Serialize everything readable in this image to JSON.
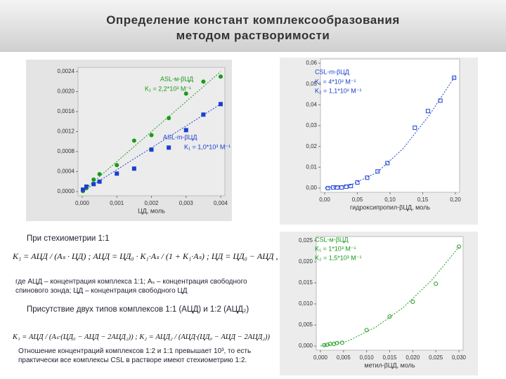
{
  "title": [
    "Определение констант комплексообразования",
    "методом растворимости"
  ],
  "text": {
    "stoich": "При стехиометрии 1:1",
    "formula1": "K₁ = АЦД / (Aₛ · ЦД) ;   АЦД = ЦД₀ · K₁·Aₛ / (1 + K₁·Aₛ) ;   ЦД = ЦД₀ − АЦД ,",
    "where": "где АЦД – концентрация комплекса 1:1; Aₛ – концентрация свободного спинового зонда; ЦД – концентрация свободного ЦД",
    "two": "Присутствие двух типов комплексов 1:1 (АЦД) и 1:2 (АЦД₂)",
    "formula2": "K₁ = АЦД / (Aₛ·(ЦД₀ − АЦД − 2АЦД₂)) ;   K₂ = АЦД₂ / (АЦД·(ЦД₀ − АЦД − 2АЦД₂))",
    "ratio": "Отношение концентраций комплексов 1:2 и 1:1 превышает 10³, то есть практически все комплексы CSL в растворе имеют стехиометрию 1:2."
  },
  "chart_data": [
    {
      "type": "scatter",
      "xlabel": "ЦД, моль",
      "xlim": [
        0,
        0.004
      ],
      "xticks": [
        {
          "value": 0,
          "label": "0,000"
        },
        {
          "value": 0.001,
          "label": "0,001"
        },
        {
          "value": 0.002,
          "label": "0,002"
        },
        {
          "value": 0.003,
          "label": "0,003"
        },
        {
          "value": 0.004,
          "label": "0,004"
        }
      ],
      "ylim": [
        0,
        0.0024
      ],
      "yticks": [
        {
          "value": 0,
          "label": "0,0000"
        },
        {
          "value": 0.0004,
          "label": "0,0004"
        },
        {
          "value": 0.0008,
          "label": "0,0008"
        },
        {
          "value": 0.0012,
          "label": "0,0012"
        },
        {
          "value": 0.0016,
          "label": "0,0016"
        },
        {
          "value": 0.002,
          "label": "0,0020"
        },
        {
          "value": 0.0024,
          "label": "0,0024"
        }
      ],
      "series": [
        {
          "marker": "circle",
          "color": "#1a9a1a",
          "x": [
            2e-05,
            0.00012,
            0.00033,
            0.0005,
            0.001,
            0.0015,
            0.002,
            0.0025,
            0.003,
            0.0035,
            0.004
          ],
          "values": [
            1e-05,
            7e-05,
            0.00024,
            0.00035,
            0.00053,
            0.00102,
            0.00113,
            0.00147,
            0.00196,
            0.0022,
            0.0023
          ]
        },
        {
          "marker": "square",
          "color": "#1a3fd0",
          "x": [
            2e-05,
            0.00012,
            0.00033,
            0.0005,
            0.001,
            0.0015,
            0.002,
            0.0025,
            0.003,
            0.0035,
            0.004
          ],
          "values": [
            4e-05,
            0.0001,
            0.00015,
            0.0002,
            0.00036,
            0.00046,
            0.00084,
            0.00088,
            0.00123,
            0.00154,
            0.00175
          ]
        },
        {
          "marker": "line",
          "color": "#1a9a1a",
          "x": [
            0,
            0.004
          ],
          "values": [
            0,
            0.0024
          ]
        },
        {
          "marker": "line",
          "color": "#1a3fd0",
          "x": [
            0,
            0.004
          ],
          "values": [
            0,
            0.00175
          ]
        }
      ],
      "annotations": [
        {
          "text": "ASL-м-βЦД",
          "color": "#1a9a1a"
        },
        {
          "text": "K₁ = 2,2*10³ M⁻¹",
          "color": "#1a9a1a"
        },
        {
          "text": "ASL-m-βЦД",
          "color": "#1a3fd0"
        },
        {
          "text": "K₁ = 1,0*10³ M⁻¹",
          "color": "#1a3fd0"
        }
      ]
    },
    {
      "type": "scatter",
      "xlabel": "гидроксипропил-βЦД, моль",
      "xlim": [
        0,
        0.2
      ],
      "xticks": [
        {
          "value": 0,
          "label": "0,00"
        },
        {
          "value": 0.05,
          "label": "0,05"
        },
        {
          "value": 0.1,
          "label": "0,10"
        },
        {
          "value": 0.15,
          "label": "0,15"
        },
        {
          "value": 0.2,
          "label": "0,20"
        }
      ],
      "ylim": [
        0,
        0.06
      ],
      "yticks": [
        {
          "value": 0,
          "label": "0,00"
        },
        {
          "value": 0.01,
          "label": "0,01"
        },
        {
          "value": 0.02,
          "label": "0,02"
        },
        {
          "value": 0.03,
          "label": "0,03"
        },
        {
          "value": 0.04,
          "label": "0,04"
        },
        {
          "value": 0.05,
          "label": "0,05"
        },
        {
          "value": 0.06,
          "label": "0,06"
        }
      ],
      "series": [
        {
          "marker": "open-square",
          "color": "#1a3fd0",
          "x": [
            0.005,
            0.013,
            0.019,
            0.026,
            0.033,
            0.04,
            0.05,
            0.065,
            0.081,
            0.096,
            0.138,
            0.158,
            0.177,
            0.198
          ],
          "values": [
            0,
            0.0003,
            0.0003,
            0.0003,
            0.0007,
            0.001,
            0.0027,
            0.005,
            0.008,
            0.012,
            0.029,
            0.037,
            0.042,
            0.053
          ]
        },
        {
          "marker": "line",
          "color": "#1a3fd0",
          "x": [
            0,
            0.04,
            0.08,
            0.12,
            0.16,
            0.2
          ],
          "values": [
            0,
            0.0015,
            0.0075,
            0.019,
            0.035,
            0.054
          ]
        }
      ],
      "annotations": [
        {
          "text": "CSL-m-βЦД",
          "color": "#1a3fd0"
        },
        {
          "text": "K₁ = 4*10² M⁻¹",
          "color": "#1a3fd0"
        },
        {
          "text": "K₂ = 1,1*10² M⁻¹",
          "color": "#1a3fd0"
        }
      ]
    },
    {
      "type": "scatter",
      "xlabel": "метил-βЦД, моль",
      "xlim": [
        0,
        0.03
      ],
      "xticks": [
        {
          "value": 0,
          "label": "0,000"
        },
        {
          "value": 0.005,
          "label": "0,005"
        },
        {
          "value": 0.01,
          "label": "0,010"
        },
        {
          "value": 0.015,
          "label": "0,015"
        },
        {
          "value": 0.02,
          "label": "0,020"
        },
        {
          "value": 0.025,
          "label": "0,025"
        },
        {
          "value": 0.03,
          "label": "0,030"
        }
      ],
      "ylim": [
        0,
        0.025
      ],
      "yticks": [
        {
          "value": 0,
          "label": "0,000"
        },
        {
          "value": 0.005,
          "label": "0,005"
        },
        {
          "value": 0.01,
          "label": "0,010"
        },
        {
          "value": 0.015,
          "label": "0,015"
        },
        {
          "value": 0.02,
          "label": "0,020"
        },
        {
          "value": 0.025,
          "label": "0,025"
        }
      ],
      "series": [
        {
          "marker": "open-circle",
          "color": "#1a9a1a",
          "x": [
            0.0008,
            0.0014,
            0.0021,
            0.0029,
            0.0036,
            0.0047,
            0.01,
            0.015,
            0.02,
            0.025,
            0.03
          ],
          "values": [
            0.0002,
            0.0003,
            0.0005,
            0.0005,
            0.0007,
            0.0008,
            0.0038,
            0.007,
            0.0105,
            0.0148,
            0.0236
          ]
        },
        {
          "marker": "line",
          "color": "#1a9a1a",
          "x": [
            0,
            0.006,
            0.012,
            0.018,
            0.024,
            0.03
          ],
          "values": [
            0,
            0.0012,
            0.0045,
            0.0092,
            0.0155,
            0.0235
          ]
        }
      ],
      "annotations": [
        {
          "text": "CSL-м-βЦД",
          "color": "#1a9a1a"
        },
        {
          "text": "K₁ = 1*10³ M⁻¹",
          "color": "#1a9a1a"
        },
        {
          "text": "K₂ = 1,5*10³ M⁻¹",
          "color": "#1a9a1a"
        }
      ]
    }
  ]
}
